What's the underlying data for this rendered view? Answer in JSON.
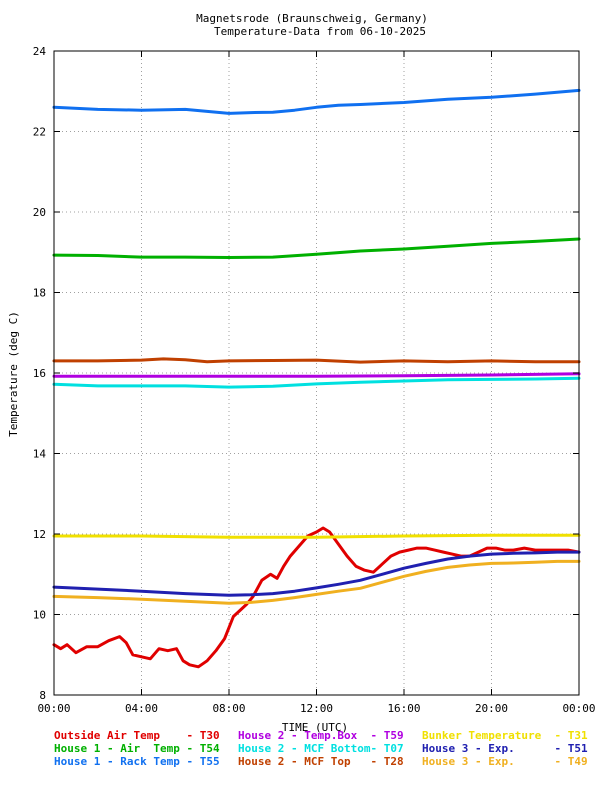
{
  "chart_data": {
    "type": "line",
    "title": "Magnetsrode (Braunschweig, Germany)",
    "subtitle": "Temperature-Data from 06-10-2025",
    "xlabel": "TIME (UTC)",
    "ylabel": "Temperature (deg C)",
    "xlim": [
      0,
      24
    ],
    "ylim": [
      8,
      24
    ],
    "x_ticks": [
      "00:00",
      "04:00",
      "08:00",
      "12:00",
      "16:00",
      "20:00",
      "00:00"
    ],
    "y_ticks": [
      "8",
      "10",
      "12",
      "14",
      "16",
      "18",
      "20",
      "22",
      "24"
    ],
    "grid": true,
    "legend_position": "bottom",
    "series": [
      {
        "name": "Outside Air Temp",
        "code": "T30",
        "color": "#e00000",
        "x": [
          0,
          0.3,
          0.6,
          1.0,
          1.5,
          2.0,
          2.5,
          3.0,
          3.3,
          3.6,
          4.0,
          4.4,
          4.8,
          5.2,
          5.6,
          5.9,
          6.2,
          6.6,
          7.0,
          7.4,
          7.8,
          8.2,
          8.5,
          8.8,
          9.1,
          9.5,
          9.9,
          10.2,
          10.5,
          10.8,
          11.2,
          11.6,
          12.0,
          12.3,
          12.6,
          13.0,
          13.4,
          13.8,
          14.2,
          14.6,
          15.0,
          15.4,
          15.8,
          16.2,
          16.6,
          17.0,
          17.4,
          17.8,
          18.2,
          18.6,
          19.0,
          19.4,
          19.8,
          20.2,
          20.6,
          21.0,
          21.5,
          22.0,
          22.5,
          23.0,
          23.5,
          24.0
        ],
        "y": [
          9.25,
          9.15,
          9.25,
          9.05,
          9.2,
          9.2,
          9.35,
          9.45,
          9.3,
          9.0,
          8.95,
          8.9,
          9.15,
          9.1,
          9.15,
          8.85,
          8.75,
          8.7,
          8.85,
          9.1,
          9.4,
          9.95,
          10.1,
          10.25,
          10.45,
          10.85,
          11.0,
          10.9,
          11.2,
          11.45,
          11.7,
          11.95,
          12.05,
          12.15,
          12.05,
          11.75,
          11.45,
          11.2,
          11.1,
          11.05,
          11.25,
          11.45,
          11.55,
          11.6,
          11.65,
          11.65,
          11.6,
          11.55,
          11.5,
          11.45,
          11.45,
          11.55,
          11.65,
          11.65,
          11.6,
          11.6,
          11.65,
          11.6,
          11.6,
          11.6,
          11.6,
          11.55
        ]
      },
      {
        "name": "House 2 - Temp.Box",
        "code": "T59",
        "color": "#b000e0",
        "x": [
          0,
          4,
          8,
          12,
          16,
          20,
          24
        ],
        "y": [
          15.92,
          15.92,
          15.92,
          15.92,
          15.93,
          15.95,
          15.98
        ]
      },
      {
        "name": "Bunker Temperature",
        "code": "T31",
        "color": "#f0e000",
        "x": [
          0,
          4,
          8,
          12,
          16,
          20,
          24
        ],
        "y": [
          11.95,
          11.95,
          11.92,
          11.92,
          11.95,
          11.97,
          11.97
        ]
      },
      {
        "name": "House 1 - Air Temp",
        "code": "T54",
        "color": "#00b000",
        "x": [
          0,
          2,
          4,
          6,
          8,
          10,
          12,
          14,
          16,
          18,
          20,
          22,
          24
        ],
        "y": [
          18.93,
          18.92,
          18.88,
          18.88,
          18.87,
          18.88,
          18.95,
          19.03,
          19.08,
          19.15,
          19.22,
          19.27,
          19.33
        ]
      },
      {
        "name": "House 2 - MCF Bottom",
        "code": "T07",
        "color": "#00e0e0",
        "x": [
          0,
          2,
          4,
          6,
          8,
          10,
          12,
          14,
          16,
          18,
          20,
          22,
          24
        ],
        "y": [
          15.72,
          15.68,
          15.68,
          15.68,
          15.65,
          15.67,
          15.73,
          15.77,
          15.8,
          15.83,
          15.84,
          15.85,
          15.87
        ]
      },
      {
        "name": "House 3 - Exp.",
        "code": "T51",
        "color": "#2020b0",
        "x": [
          0,
          2,
          4,
          6,
          8,
          9,
          10,
          11,
          12,
          13,
          14,
          15,
          16,
          17,
          18,
          19,
          20,
          21,
          22,
          23,
          24
        ],
        "y": [
          10.68,
          10.63,
          10.58,
          10.52,
          10.48,
          10.49,
          10.52,
          10.58,
          10.66,
          10.75,
          10.85,
          11.0,
          11.15,
          11.27,
          11.38,
          11.45,
          11.5,
          11.52,
          11.53,
          11.55,
          11.55
        ]
      },
      {
        "name": "House 1 - Rack Temp",
        "code": "T55",
        "color": "#1070f0",
        "x": [
          0,
          2,
          4,
          6,
          7,
          8,
          9,
          10,
          11,
          12,
          13,
          14,
          16,
          18,
          20,
          22,
          24
        ],
        "y": [
          22.6,
          22.55,
          22.53,
          22.55,
          22.5,
          22.45,
          22.47,
          22.48,
          22.53,
          22.6,
          22.65,
          22.67,
          22.72,
          22.8,
          22.85,
          22.93,
          23.02
        ]
      },
      {
        "name": "House 2 - MCF Top",
        "code": "T28",
        "color": "#c04000",
        "x": [
          0,
          2,
          4,
          5,
          6,
          7,
          8,
          10,
          12,
          14,
          16,
          18,
          20,
          22,
          24
        ],
        "y": [
          16.3,
          16.3,
          16.32,
          16.35,
          16.33,
          16.28,
          16.3,
          16.31,
          16.32,
          16.27,
          16.3,
          16.28,
          16.3,
          16.28,
          16.28
        ]
      },
      {
        "name": "House 3 - Exp.",
        "code": "T49",
        "color": "#f0b020",
        "x": [
          0,
          2,
          4,
          6,
          8,
          9,
          10,
          11,
          12,
          13,
          14,
          15,
          16,
          17,
          18,
          19,
          20,
          21,
          22,
          23,
          24
        ],
        "y": [
          10.45,
          10.42,
          10.38,
          10.33,
          10.28,
          10.3,
          10.35,
          10.42,
          10.5,
          10.58,
          10.65,
          10.8,
          10.95,
          11.07,
          11.17,
          11.23,
          11.27,
          11.28,
          11.3,
          11.32,
          11.32
        ]
      }
    ],
    "legend": [
      {
        "label": "Outside Air Temp    - T30",
        "color": "#e00000"
      },
      {
        "label": "House 2 - Temp.Box  - T59",
        "color": "#b000e0"
      },
      {
        "label": "Bunker Temperature  - T31",
        "color": "#f0e000"
      },
      {
        "label": "House 1 - Air  Temp - T54",
        "color": "#00b000"
      },
      {
        "label": "House 2 - MCF Bottom- T07",
        "color": "#00e0e0"
      },
      {
        "label": "House 3 - Exp.      - T51",
        "color": "#2020b0"
      },
      {
        "label": "House 1 - Rack Temp - T55",
        "color": "#1070f0"
      },
      {
        "label": "House 2 - MCF Top   - T28",
        "color": "#c04000"
      },
      {
        "label": "House 3 - Exp.      - T49",
        "color": "#f0b020"
      }
    ]
  }
}
